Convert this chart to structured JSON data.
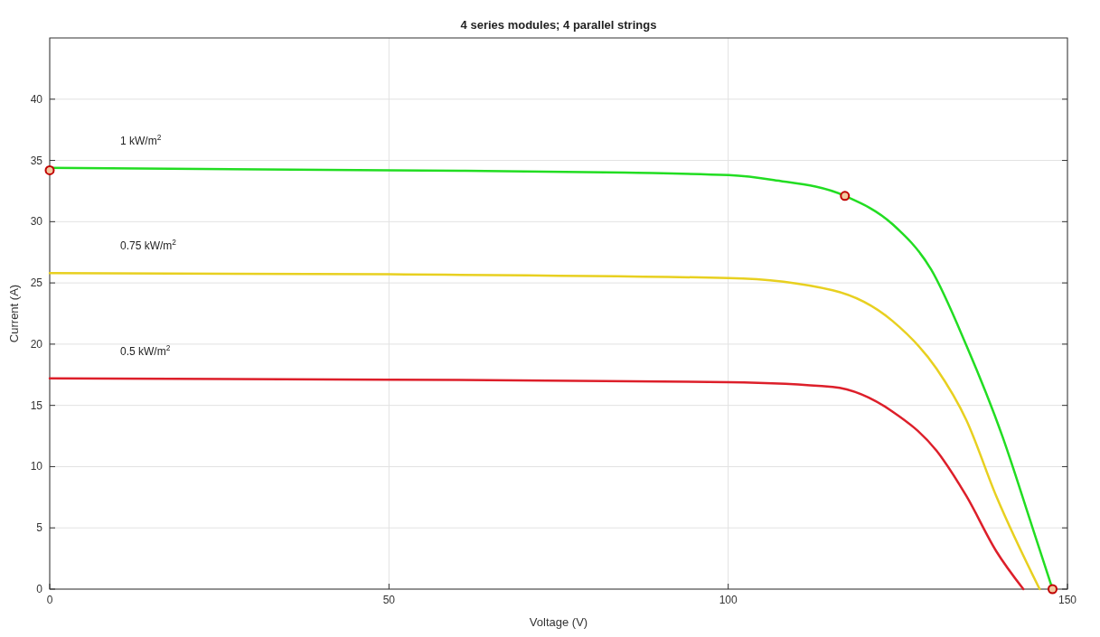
{
  "chart_data": {
    "type": "line",
    "title": "4 series modules; 4 parallel strings",
    "xlabel": "Voltage (V)",
    "ylabel": "Current (A)",
    "xlim": [
      0,
      150
    ],
    "xticks": [
      0,
      50,
      100,
      150
    ],
    "ylim": [
      0,
      45
    ],
    "yticks": [
      0,
      5,
      10,
      15,
      20,
      25,
      30,
      35,
      40
    ],
    "grid": true,
    "marker": "none",
    "line_style": "solid",
    "series": [
      {
        "name": "1 kW/m$^{2}$",
        "color": "#22dd22",
        "x": [
          0,
          50,
          84.8,
          100.1,
          106.7,
          117.2,
          124.2,
          129.9,
          135.1,
          140.4,
          144.8,
          147.8
        ],
        "values": [
          34.4,
          34.2,
          34.0,
          33.8,
          33.4,
          32.1,
          29.8,
          26.1,
          19.9,
          12.5,
          5.1,
          0
        ]
      },
      {
        "name": "0.75 kW/m$^{2}$",
        "color": "#e8d020",
        "x": [
          0,
          50,
          100.1,
          115.4,
          124.2,
          130.7,
          135.1,
          139.5,
          145.9
        ],
        "values": [
          25.8,
          25.7,
          25.4,
          24.4,
          21.9,
          18.0,
          13.8,
          7.6,
          0
        ]
      },
      {
        "name": "0.5 kW/m$^{2}$",
        "color": "#dd1f2a",
        "x": [
          0,
          50,
          100.1,
          115.4,
          124.2,
          130.7,
          135.1,
          139.5,
          143.5
        ],
        "values": [
          17.2,
          17.1,
          16.9,
          16.5,
          14.5,
          11.3,
          7.6,
          3.1,
          0
        ]
      },
      {
        "type": "scatter",
        "marker": "circle",
        "color": "#c00000",
        "x": [
          0,
          117.2,
          147.8
        ],
        "values": [
          34.2,
          32.1,
          0
        ]
      }
    ]
  }
}
